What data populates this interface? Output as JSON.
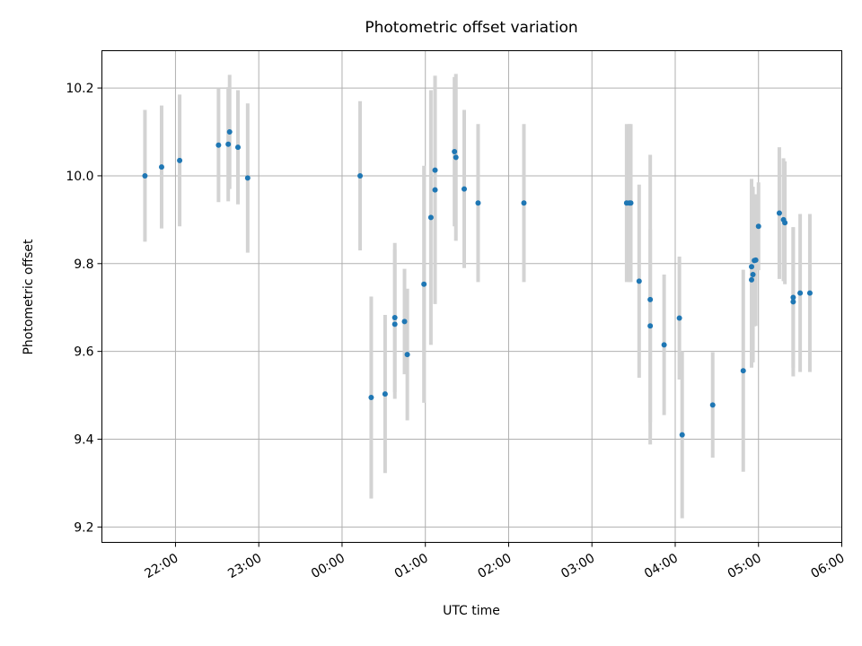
{
  "chart_data": {
    "type": "scatter",
    "title": "Photometric offset variation",
    "xlabel": "UTC time",
    "ylabel": "Photometric offset",
    "x_ticks": [
      "22:00",
      "23:00",
      "00:00",
      "01:00",
      "02:00",
      "03:00",
      "04:00",
      "05:00",
      "06:00"
    ],
    "y_ticks": [
      "9.2",
      "9.4",
      "9.6",
      "9.8",
      "10.0",
      "10.2"
    ],
    "xlim": [
      "21:07",
      "06:00"
    ],
    "ylim": [
      9.165,
      10.285
    ],
    "grid": true,
    "colors": {
      "point": "#1f77b4",
      "errorbar": "#d3d3d3",
      "grid": "#b0b0b0"
    },
    "series": [
      {
        "x": [
          "21:38",
          "21:50",
          "22:03",
          "22:31",
          "22:38",
          "22:39",
          "22:45",
          "22:52",
          "00:13",
          "00:21",
          "00:31",
          "00:38",
          "00:38",
          "00:45",
          "00:47",
          "00:59",
          "01:04",
          "01:07",
          "01:07",
          "01:21",
          "01:22",
          "01:28",
          "01:38",
          "02:11",
          "03:25",
          "03:27",
          "03:28",
          "03:34",
          "03:42",
          "03:42",
          "03:52",
          "04:03",
          "04:05",
          "04:27",
          "04:49",
          "04:55",
          "04:55",
          "04:56",
          "04:57",
          "04:58",
          "05:00",
          "05:15",
          "05:18",
          "05:19",
          "05:25",
          "05:25",
          "05:30",
          "05:37"
        ],
        "y": [
          10.0,
          10.02,
          10.035,
          10.07,
          10.072,
          10.1,
          10.065,
          9.995,
          10.0,
          9.495,
          9.503,
          9.677,
          9.662,
          9.668,
          9.593,
          9.753,
          9.905,
          9.968,
          10.013,
          10.055,
          10.042,
          9.97,
          9.938,
          9.938,
          9.938,
          9.938,
          9.938,
          9.76,
          9.718,
          9.658,
          9.615,
          9.676,
          9.41,
          9.478,
          9.556,
          9.763,
          9.793,
          9.775,
          9.807,
          9.808,
          9.885,
          9.915,
          9.9,
          9.893,
          9.713,
          9.723,
          9.733,
          9.733
        ],
        "yerr": [
          0.15,
          0.14,
          0.15,
          0.13,
          0.13,
          0.13,
          0.13,
          0.17,
          0.17,
          0.23,
          0.18,
          0.17,
          0.17,
          0.12,
          0.15,
          0.27,
          0.29,
          0.26,
          0.21,
          0.17,
          0.19,
          0.18,
          0.18,
          0.18,
          0.18,
          0.18,
          0.18,
          0.22,
          0.33,
          0.22,
          0.16,
          0.14,
          0.19,
          0.12,
          0.23,
          0.2,
          0.2,
          0.2,
          0.15,
          0.15,
          0.1,
          0.15,
          0.14,
          0.14,
          0.17,
          0.16,
          0.18,
          0.18
        ]
      }
    ]
  }
}
